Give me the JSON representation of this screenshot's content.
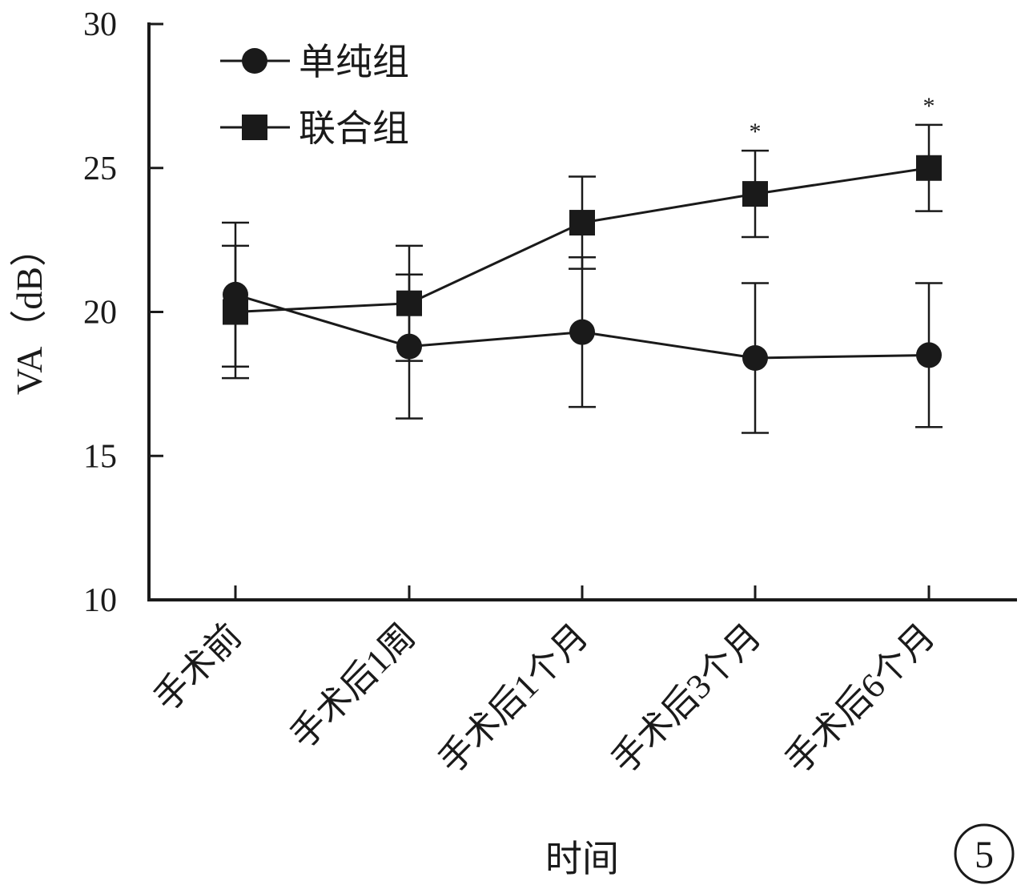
{
  "chart_data": {
    "type": "line",
    "xlabel": "时间",
    "ylabel": "VA（dB）",
    "categories": [
      "手术前",
      "手术后1周",
      "手术后1个月",
      "手术后3个月",
      "手术后6个月"
    ],
    "ylim": [
      10,
      30
    ],
    "yticks": [
      "10",
      "15",
      "20",
      "25",
      "30"
    ],
    "grid": false,
    "legend_position": "top-left",
    "series": [
      {
        "name": "单纯组",
        "marker": "circle",
        "values": [
          20.6,
          18.8,
          19.3,
          18.4,
          18.5
        ],
        "errors": [
          2.5,
          2.5,
          2.6,
          2.6,
          2.5
        ]
      },
      {
        "name": "联合组",
        "marker": "square",
        "values": [
          20.0,
          20.3,
          23.1,
          24.1,
          25.0
        ],
        "errors": [
          2.3,
          2.0,
          1.6,
          1.5,
          1.5
        ]
      }
    ],
    "annotations": [
      {
        "category_index": 3,
        "text": "*"
      },
      {
        "category_index": 4,
        "text": "*"
      }
    ],
    "panel_label": "5"
  }
}
